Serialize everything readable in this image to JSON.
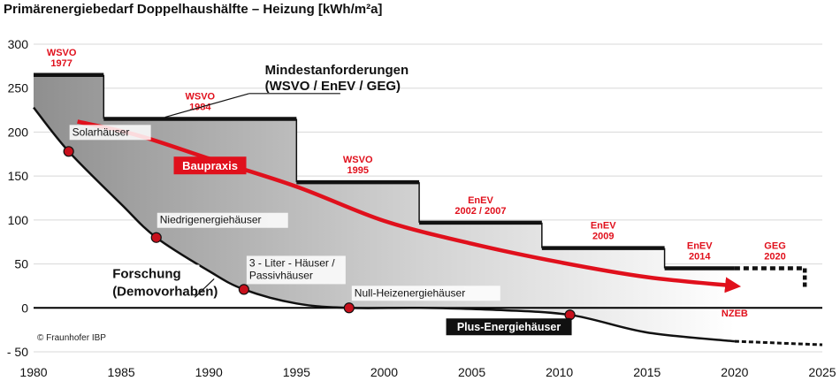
{
  "chart_data": {
    "type": "line",
    "title": "Primärenergiebedarf Doppelhaushälfte – Heizung [kWh/m²a]",
    "xlim": [
      1980,
      2025
    ],
    "ylim": [
      -50,
      300
    ],
    "x_ticks": [
      1980,
      1985,
      1990,
      1995,
      2000,
      2005,
      2010,
      2015,
      2020,
      2025
    ],
    "y_ticks": [
      -50,
      0,
      50,
      100,
      150,
      200,
      250,
      300
    ],
    "x_tick_labels": [
      "1980",
      "1985",
      "1990",
      "1995",
      "2000",
      "2005",
      "2010",
      "2015",
      "2020",
      "2025"
    ],
    "y_tick_labels": [
      "- 50",
      "0",
      "50",
      "100",
      "150",
      "200",
      "250",
      "300"
    ],
    "grid": "horizontal",
    "mindestanforderungen": {
      "label_line1": "Mindestanforderungen",
      "label_line2": "(WSVO / EnEV / GEG)",
      "steps": [
        {
          "from": 1977,
          "to": 1984,
          "value": 265,
          "label_line1": "WSVO",
          "label_line2": "1977"
        },
        {
          "from": 1984,
          "to": 1995,
          "value": 215,
          "label_line1": "WSVO",
          "label_line2": "1984"
        },
        {
          "from": 1995,
          "to": 2002,
          "value": 143,
          "label_line1": "WSVO",
          "label_line2": "1995"
        },
        {
          "from": 2002,
          "to": 2009,
          "value": 97,
          "label_line1": "EnEV",
          "label_line2": "2002 / 2007"
        },
        {
          "from": 2009,
          "to": 2016,
          "value": 68,
          "label_line1": "EnEV",
          "label_line2": "2009"
        },
        {
          "from": 2016,
          "to": 2020,
          "value": 45,
          "label_line1": "EnEV",
          "label_line2": "2014"
        }
      ],
      "projected": {
        "from": 2020,
        "to": 2024,
        "value": 45,
        "drop_to": 22,
        "label_line1": "GEG",
        "label_line2": "2020"
      }
    },
    "forschung": {
      "label_line1": "Forschung",
      "label_line2": "(Demovorhaben)",
      "points": [
        {
          "x": 1980,
          "y": 228
        },
        {
          "x": 1982,
          "y": 178
        },
        {
          "x": 1985,
          "y": 118
        },
        {
          "x": 1987,
          "y": 80
        },
        {
          "x": 1990,
          "y": 42
        },
        {
          "x": 1992,
          "y": 21
        },
        {
          "x": 1995,
          "y": 5
        },
        {
          "x": 1998,
          "y": 0
        },
        {
          "x": 2002,
          "y": 0
        },
        {
          "x": 2006,
          "y": -2
        },
        {
          "x": 2010.6,
          "y": -8
        },
        {
          "x": 2015,
          "y": -28
        },
        {
          "x": 2020,
          "y": -38
        }
      ],
      "projected_points": [
        {
          "x": 2020,
          "y": -38
        },
        {
          "x": 2025,
          "y": -42
        }
      ]
    },
    "milestones": [
      {
        "label": "Solarhäuser",
        "x": 1982,
        "y": 178
      },
      {
        "label": "Niedrigenergiehäuser",
        "x": 1987,
        "y": 80
      },
      {
        "label_line1": "3 - Liter - Häuser /",
        "label_line2": "Passivhäuser",
        "x": 1992,
        "y": 21
      },
      {
        "label": "Null-Heizenergiehäuser",
        "x": 1998,
        "y": 0
      },
      {
        "label": "Plus-Energiehäuser",
        "x": 2010.6,
        "y": -8
      }
    ],
    "baupraxis": {
      "label": "Baupraxis",
      "points": [
        {
          "x": 1982.5,
          "y": 212
        },
        {
          "x": 1986,
          "y": 196
        },
        {
          "x": 1990,
          "y": 170
        },
        {
          "x": 1995,
          "y": 138
        },
        {
          "x": 2000,
          "y": 99
        },
        {
          "x": 2005,
          "y": 73
        },
        {
          "x": 2010,
          "y": 52
        },
        {
          "x": 2015,
          "y": 35
        },
        {
          "x": 2020,
          "y": 25
        }
      ]
    },
    "nzeb": {
      "label": "NZEB",
      "x": 2020,
      "y": -10
    },
    "copyright": "© Fraunhofer IBP"
  }
}
